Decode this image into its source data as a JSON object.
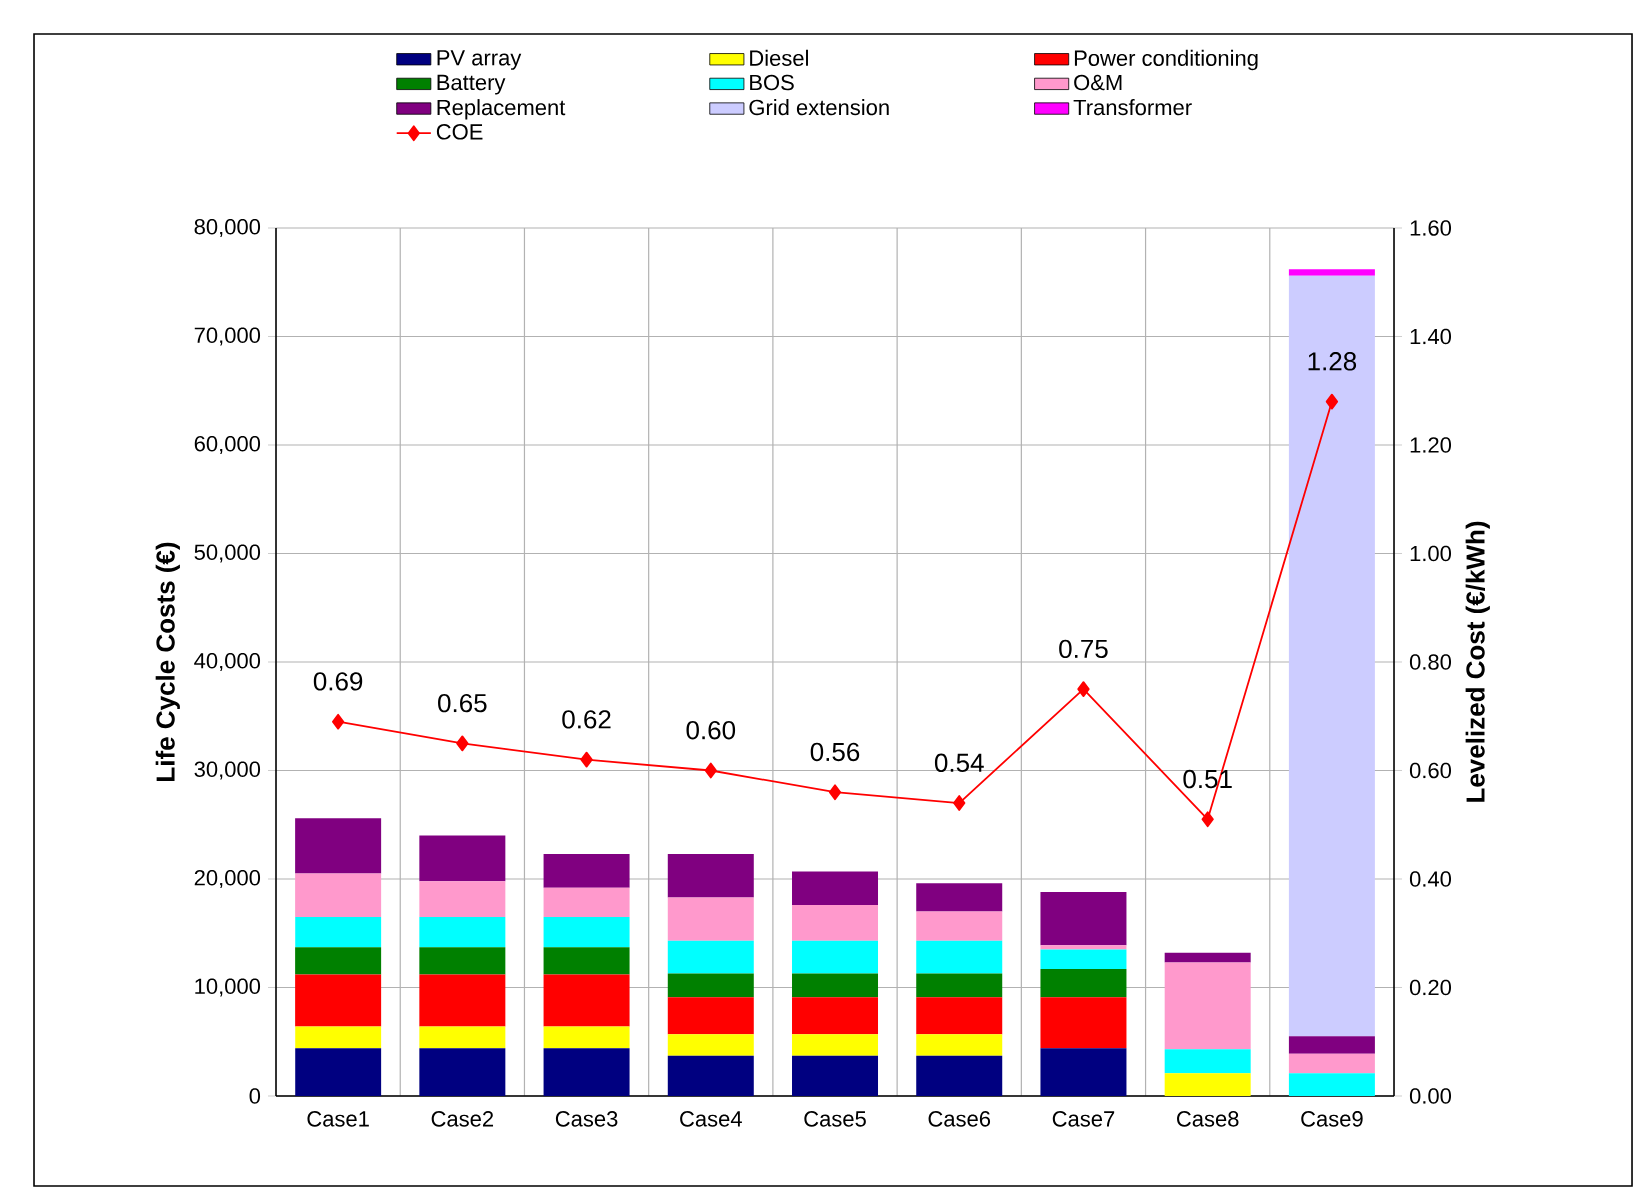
{
  "chart_data": {
    "type": "bar",
    "stacked": true,
    "ylabel": "Life Cycle Costs (€)",
    "y2label": "Levelized Cost (€/kWh)",
    "categories": [
      "Case1",
      "Case2",
      "Case3",
      "Case4",
      "Case5",
      "Case6",
      "Case7",
      "Case8",
      "Case9"
    ],
    "series": [
      {
        "name": "PV array",
        "color": "#000080",
        "values": [
          4400,
          4400,
          4400,
          3700,
          3700,
          3700,
          4400,
          0,
          0
        ]
      },
      {
        "name": "Diesel",
        "color": "#ffff00",
        "values": [
          2000,
          2000,
          2000,
          2000,
          2000,
          2000,
          0,
          2100,
          0
        ]
      },
      {
        "name": "Power conditioning",
        "color": "#ff0000",
        "values": [
          4800,
          4800,
          4800,
          3400,
          3400,
          3400,
          4700,
          0,
          0
        ]
      },
      {
        "name": "Battery",
        "color": "#008000",
        "values": [
          2500,
          2500,
          2500,
          2200,
          2200,
          2200,
          2600,
          0,
          0
        ]
      },
      {
        "name": "BOS",
        "color": "#00ffff",
        "values": [
          2800,
          2800,
          2800,
          3000,
          3000,
          3000,
          1800,
          2200,
          2100
        ]
      },
      {
        "name": "O&M",
        "color": "#ff99cc",
        "values": [
          4000,
          3300,
          2700,
          4000,
          3300,
          2700,
          400,
          8000,
          1800
        ]
      },
      {
        "name": "Replacement",
        "color": "#800080",
        "values": [
          5100,
          4200,
          3100,
          4000,
          3100,
          2600,
          4900,
          900,
          1600
        ]
      },
      {
        "name": "Grid extension",
        "color": "#ccccff",
        "values": [
          0,
          0,
          0,
          0,
          0,
          0,
          0,
          0,
          70100
        ]
      },
      {
        "name": "Transformer",
        "color": "#ff00ff",
        "values": [
          0,
          0,
          0,
          0,
          0,
          0,
          0,
          0,
          600
        ]
      },
      {
        "name": "COE",
        "type": "line",
        "axis": "y2",
        "marker": "diamond",
        "color": "#ff0000",
        "values": [
          0.69,
          0.65,
          0.62,
          0.6,
          0.56,
          0.54,
          0.75,
          0.51,
          1.28
        ],
        "value_labels": [
          "0.69",
          "0.65",
          "0.62",
          "0.60",
          "0.56",
          "0.54",
          "0.75",
          "0.51",
          "1.28"
        ]
      }
    ],
    "ylim": [
      0,
      80000
    ],
    "yticks": [
      0,
      {
        "value": 10000,
        "label": "10,000"
      },
      {
        "value": 20000,
        "label": "20,000"
      },
      {
        "value": 30000,
        "label": "30,000"
      },
      {
        "value": 40000,
        "label": "40,000"
      },
      {
        "value": 50000,
        "label": "50,000"
      },
      {
        "value": 60000,
        "label": "60,000"
      },
      {
        "value": 70000,
        "label": "70,000"
      },
      {
        "value": 80000,
        "label": "80,000"
      }
    ],
    "y2lim": [
      0,
      1.6
    ],
    "y2ticks": [
      {
        "value": 0,
        "label": "0.00"
      },
      {
        "value": 0.2,
        "label": "0.20"
      },
      {
        "value": 0.4,
        "label": "0.40"
      },
      {
        "value": 0.6,
        "label": "0.60"
      },
      {
        "value": 0.8,
        "label": "0.80"
      },
      {
        "value": 1.0,
        "label": "1.00"
      },
      {
        "value": 1.2,
        "label": "1.20"
      },
      {
        "value": 1.4,
        "label": "1.40"
      },
      {
        "value": 1.6,
        "label": "1.60"
      }
    ],
    "grid": true,
    "legend": "top"
  }
}
